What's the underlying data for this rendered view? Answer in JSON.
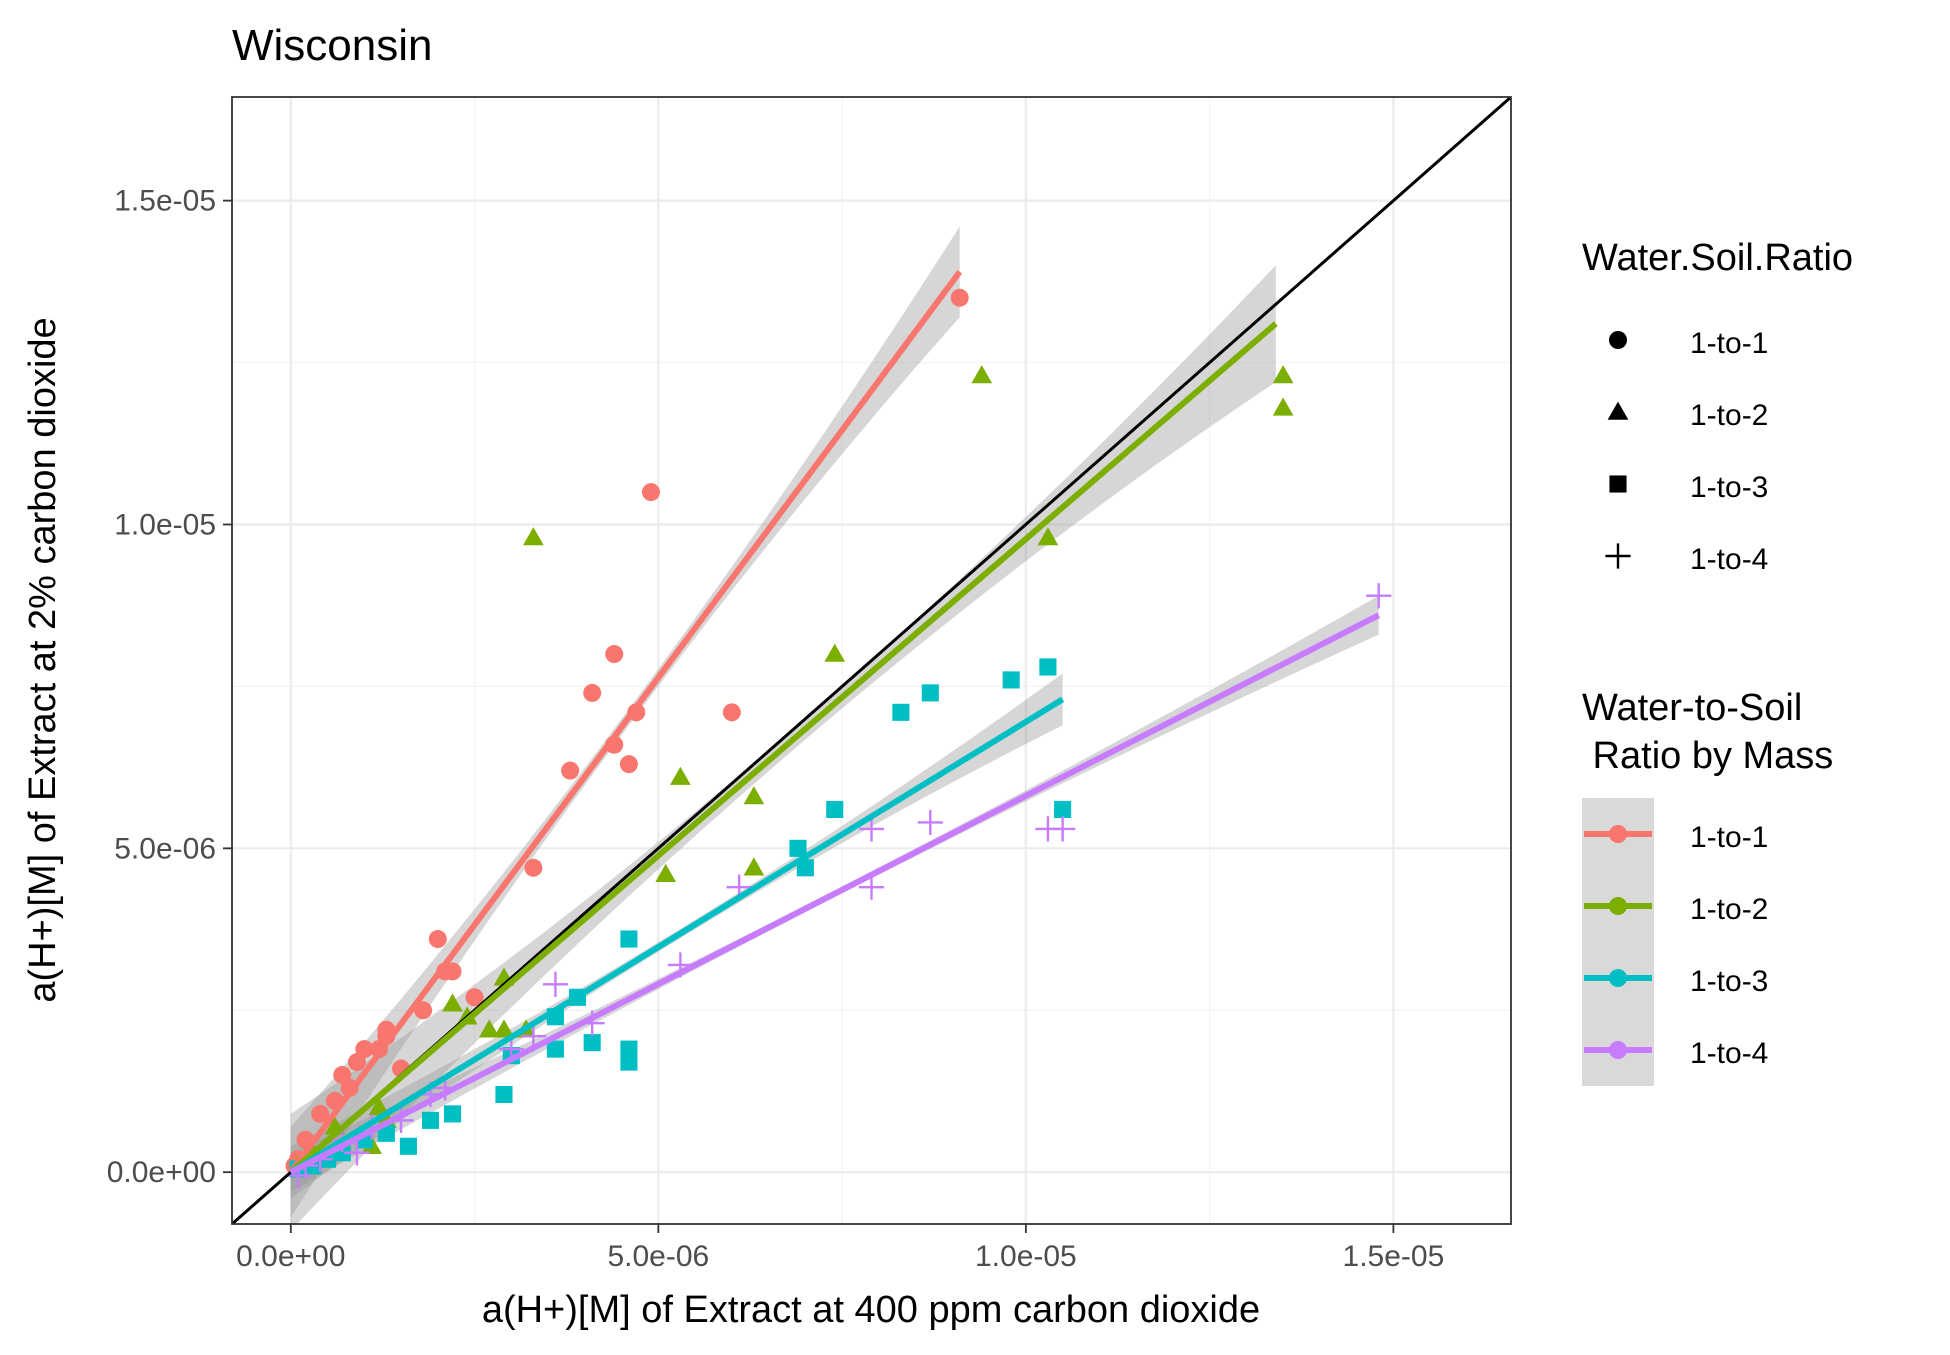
{
  "chart_data": {
    "type": "scatter",
    "title": "Wisconsin",
    "xlabel": "a(H+)[M] of Extract at 400 ppm carbon dioxide",
    "ylabel": "a(H+)[M] of Extract at 2% carbon dioxide",
    "xlim": [
      -8e-07,
      1.66e-05
    ],
    "ylim": [
      -8e-07,
      1.66e-05
    ],
    "x_ticks": [
      0,
      5e-06,
      1e-05,
      1.5e-05
    ],
    "x_tick_labels": [
      "0.0e+00",
      "5.0e-06",
      "1.0e-05",
      "1.5e-05"
    ],
    "y_ticks": [
      0,
      5e-06,
      1e-05,
      1.5e-05
    ],
    "y_tick_labels": [
      "0.0e+00",
      "5.0e-06",
      "1.0e-05",
      "1.5e-05"
    ],
    "grid": true,
    "reference_line": {
      "slope": 1,
      "intercept": 0,
      "color": "#000000"
    },
    "legend_shape": {
      "title": "Water.Soil.Ratio",
      "entries": [
        {
          "label": "1-to-1",
          "shape": "circle"
        },
        {
          "label": "1-to-2",
          "shape": "triangle"
        },
        {
          "label": "1-to-3",
          "shape": "square"
        },
        {
          "label": "1-to-4",
          "shape": "plus"
        }
      ]
    },
    "legend_color": {
      "title_line1": "Water-to-Soil",
      "title_line2": " Ratio by Mass",
      "entries": [
        {
          "label": "1-to-1",
          "color": "#F8766D"
        },
        {
          "label": "1-to-2",
          "color": "#7CAE00"
        },
        {
          "label": "1-to-3",
          "color": "#00BFC4"
        },
        {
          "label": "1-to-4",
          "color": "#C77CFF"
        }
      ]
    },
    "legend_placement": "right",
    "series": [
      {
        "key": "1-to-1",
        "shape": "circle",
        "color": "#F8766D",
        "fit": {
          "x0": 0,
          "x1": 9.1e-06,
          "y0": 0,
          "y1": 1.39e-05,
          "band": 7e-07
        },
        "points": [
          [
            9.1e-06,
            1.35e-05
          ],
          [
            4.9e-06,
            1.05e-05
          ],
          [
            4.4e-06,
            8e-06
          ],
          [
            4.1e-06,
            7.4e-06
          ],
          [
            4.7e-06,
            7.1e-06
          ],
          [
            6e-06,
            7.1e-06
          ],
          [
            4.4e-06,
            6.6e-06
          ],
          [
            4.6e-06,
            6.3e-06
          ],
          [
            3.8e-06,
            6.2e-06
          ],
          [
            3.3e-06,
            4.7e-06
          ],
          [
            2e-06,
            3.6e-06
          ],
          [
            2.1e-06,
            3.1e-06
          ],
          [
            2.2e-06,
            3.1e-06
          ],
          [
            2.5e-06,
            2.7e-06
          ],
          [
            1.3e-06,
            2.2e-06
          ],
          [
            1.3e-06,
            2.1e-06
          ],
          [
            1.8e-06,
            2.5e-06
          ],
          [
            1.2e-06,
            1.9e-06
          ],
          [
            1e-06,
            1.9e-06
          ],
          [
            1.5e-06,
            1.6e-06
          ],
          [
            9e-07,
            1.7e-06
          ],
          [
            7e-07,
            1.5e-06
          ],
          [
            8e-07,
            1.3e-06
          ],
          [
            6e-07,
            1.1e-06
          ],
          [
            4e-07,
            9e-07
          ],
          [
            2e-07,
            5e-07
          ],
          [
            1e-07,
            2e-07
          ],
          [
            5e-08,
            1e-07
          ]
        ]
      },
      {
        "key": "1-to-2",
        "shape": "triangle",
        "color": "#7CAE00",
        "fit": {
          "x0": 0,
          "x1": 1.34e-05,
          "y0": 0,
          "y1": 1.31e-05,
          "band": 9e-07
        },
        "points": [
          [
            1.35e-05,
            1.23e-05
          ],
          [
            1.35e-05,
            1.18e-05
          ],
          [
            9.4e-06,
            1.23e-05
          ],
          [
            1.03e-05,
            9.8e-06
          ],
          [
            3.3e-06,
            9.8e-06
          ],
          [
            7.4e-06,
            8e-06
          ],
          [
            5.3e-06,
            6.1e-06
          ],
          [
            6.3e-06,
            5.8e-06
          ],
          [
            5.1e-06,
            4.6e-06
          ],
          [
            6.3e-06,
            4.7e-06
          ],
          [
            2.9e-06,
            3e-06
          ],
          [
            2.2e-06,
            2.6e-06
          ],
          [
            2.4e-06,
            2.4e-06
          ],
          [
            2.7e-06,
            2.2e-06
          ],
          [
            2.9e-06,
            2.2e-06
          ],
          [
            3.2e-06,
            2.2e-06
          ],
          [
            1.2e-06,
            1e-06
          ],
          [
            1.3e-06,
            8e-07
          ],
          [
            1.1e-06,
            4e-07
          ],
          [
            6e-07,
            7e-07
          ],
          [
            3e-07,
            3e-07
          ],
          [
            1e-07,
            1e-07
          ]
        ]
      },
      {
        "key": "1-to-3",
        "shape": "square",
        "color": "#00BFC4",
        "fit": {
          "x0": 0,
          "x1": 1.05e-05,
          "y0": 0,
          "y1": 7.3e-06,
          "band": 4e-07
        },
        "points": [
          [
            1.03e-05,
            7.8e-06
          ],
          [
            9.8e-06,
            7.6e-06
          ],
          [
            8.7e-06,
            7.4e-06
          ],
          [
            8.3e-06,
            7.1e-06
          ],
          [
            7.4e-06,
            5.6e-06
          ],
          [
            1.05e-05,
            5.6e-06
          ],
          [
            6.9e-06,
            5e-06
          ],
          [
            7e-06,
            4.7e-06
          ],
          [
            4.6e-06,
            3.6e-06
          ],
          [
            3.9e-06,
            2.7e-06
          ],
          [
            3.6e-06,
            2.4e-06
          ],
          [
            3.6e-06,
            1.9e-06
          ],
          [
            4.1e-06,
            2e-06
          ],
          [
            4.6e-06,
            1.9e-06
          ],
          [
            4.6e-06,
            1.7e-06
          ],
          [
            3e-06,
            1.8e-06
          ],
          [
            2.9e-06,
            1.2e-06
          ],
          [
            2.2e-06,
            9e-07
          ],
          [
            1.9e-06,
            8e-07
          ],
          [
            1.6e-06,
            4e-07
          ],
          [
            1.3e-06,
            6e-07
          ],
          [
            1e-06,
            5e-07
          ],
          [
            7e-07,
            3e-07
          ],
          [
            5e-07,
            2e-07
          ],
          [
            3e-07,
            1e-07
          ],
          [
            1e-07,
            5e-08
          ]
        ]
      },
      {
        "key": "1-to-4",
        "shape": "plus",
        "color": "#C77CFF",
        "fit": {
          "x0": 0,
          "x1": 1.48e-05,
          "y0": 0,
          "y1": 8.6e-06,
          "band": 3e-07
        },
        "points": [
          [
            1.48e-05,
            8.9e-06
          ],
          [
            8.7e-06,
            5.4e-06
          ],
          [
            7.9e-06,
            5.3e-06
          ],
          [
            1.03e-05,
            5.3e-06
          ],
          [
            1.05e-05,
            5.3e-06
          ],
          [
            7.9e-06,
            4.4e-06
          ],
          [
            6.1e-06,
            4.4e-06
          ],
          [
            5.3e-06,
            3.2e-06
          ],
          [
            3.6e-06,
            2.9e-06
          ],
          [
            4.1e-06,
            2.3e-06
          ],
          [
            3.3e-06,
            2.1e-06
          ],
          [
            3e-06,
            1.9e-06
          ],
          [
            2.1e-06,
            1.3e-06
          ],
          [
            1.9e-06,
            1.2e-06
          ],
          [
            1.5e-06,
            8e-07
          ],
          [
            1.1e-06,
            7e-07
          ],
          [
            7e-07,
            5e-07
          ],
          [
            9e-07,
            3e-07
          ],
          [
            4e-07,
            2e-07
          ],
          [
            2e-07,
            1e-07
          ],
          [
            1e-07,
            -5e-08
          ]
        ]
      }
    ]
  }
}
